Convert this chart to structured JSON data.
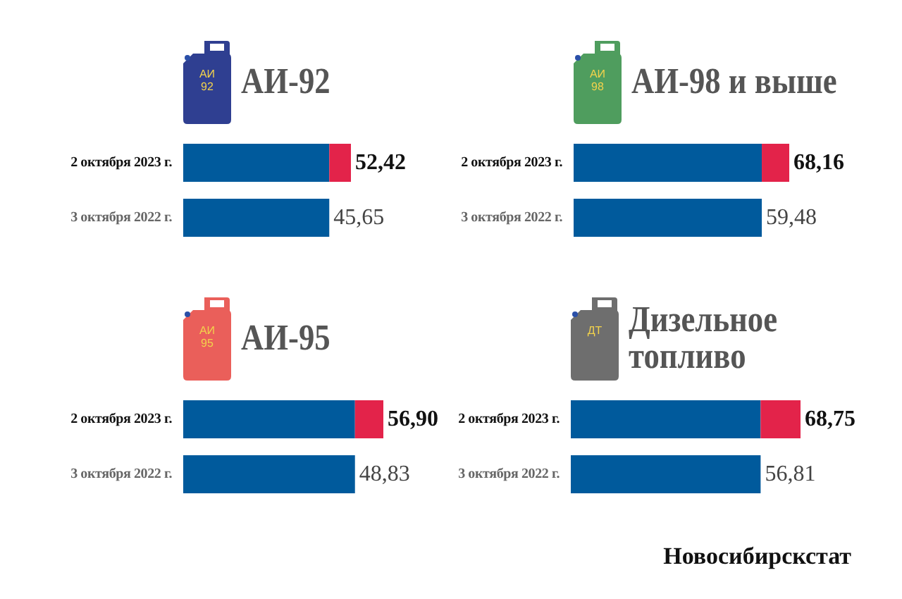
{
  "chart_data": [
    {
      "type": "bar",
      "orientation": "horizontal",
      "stacked": true,
      "title": "АИ-92",
      "categories": [
        "2 октября 2023 г.",
        "3 октября 2022 г."
      ],
      "series": [
        {
          "color": "#005a9c",
          "values": [
            45.65,
            45.65
          ],
          "value_labels": [
            null,
            "45,65"
          ]
        },
        {
          "color": "#e3234a",
          "values": [
            6.77,
            null
          ]
        }
      ],
      "totals": [
        "52,42",
        null
      ],
      "tick_labels": "y",
      "annotations": [
        "АИ 92"
      ]
    },
    {
      "type": "bar",
      "orientation": "horizontal",
      "stacked": true,
      "title": "АИ-98 и выше",
      "categories": [
        "2 октября 2023 г.",
        "3 октября 2022 г."
      ],
      "series": [
        {
          "color": "#005a9c",
          "values": [
            59.48,
            59.48
          ],
          "value_labels": [
            null,
            "59,48"
          ]
        },
        {
          "color": "#e3234a",
          "values": [
            8.68,
            null
          ]
        }
      ],
      "totals": [
        "68,16",
        null
      ],
      "tick_labels": "y",
      "annotations": [
        "АИ 98"
      ]
    },
    {
      "type": "bar",
      "orientation": "horizontal",
      "stacked": true,
      "title": "АИ-95",
      "categories": [
        "2 октября 2023 г.",
        "3 октября 2022 г."
      ],
      "series": [
        {
          "color": "#005a9c",
          "values": [
            48.83,
            48.83
          ],
          "value_labels": [
            null,
            "48,83"
          ]
        },
        {
          "color": "#e3234a",
          "values": [
            8.07,
            null
          ]
        }
      ],
      "totals": [
        "56,90",
        null
      ],
      "tick_labels": "y",
      "annotations": [
        "АИ 95"
      ]
    },
    {
      "type": "bar",
      "orientation": "horizontal",
      "stacked": true,
      "title": "Дизельное топливо",
      "categories": [
        "2 октября 2023 г.",
        "3 октября 2022 г."
      ],
      "series": [
        {
          "color": "#005a9c",
          "values": [
            56.81,
            56.81
          ],
          "value_labels": [
            null,
            "56,81"
          ]
        },
        {
          "color": "#e3234a",
          "values": [
            11.94,
            null
          ]
        }
      ],
      "totals": [
        "68,75",
        null
      ],
      "tick_labels": "y",
      "annotations": [
        "ДТ",
        "Новосибирскстат"
      ]
    }
  ]
}
